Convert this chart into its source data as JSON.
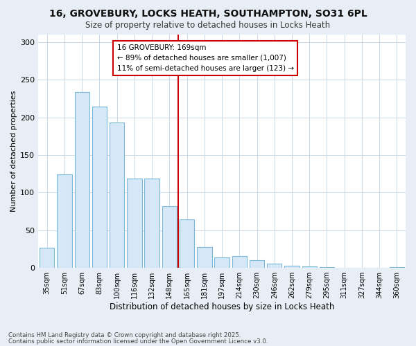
{
  "title_line1": "16, GROVEBURY, LOCKS HEATH, SOUTHAMPTON, SO31 6PL",
  "title_line2": "Size of property relative to detached houses in Locks Heath",
  "xlabel": "Distribution of detached houses by size in Locks Heath",
  "ylabel": "Number of detached properties",
  "categories": [
    "35sqm",
    "51sqm",
    "67sqm",
    "83sqm",
    "100sqm",
    "116sqm",
    "132sqm",
    "148sqm",
    "165sqm",
    "181sqm",
    "197sqm",
    "214sqm",
    "230sqm",
    "246sqm",
    "262sqm",
    "279sqm",
    "295sqm",
    "311sqm",
    "327sqm",
    "344sqm",
    "360sqm"
  ],
  "values": [
    27,
    124,
    234,
    214,
    193,
    119,
    119,
    82,
    65,
    28,
    14,
    16,
    10,
    6,
    3,
    2,
    1,
    0,
    0,
    0,
    1
  ],
  "bar_color": "#d6e8f7",
  "bar_edge_color": "#7ab8d8",
  "vline_index": 8,
  "vline_color": "#cc0000",
  "annotation_line1": "16 GROVEBURY: 169sqm",
  "annotation_line2": "← 89% of detached houses are smaller (1,007)",
  "annotation_line3": "11% of semi-detached houses are larger (123) →",
  "annotation_box_edgecolor": "#cc0000",
  "plot_bg_color": "#ffffff",
  "fig_bg_color": "#e8eef5",
  "ylim": [
    0,
    310
  ],
  "yticks": [
    0,
    50,
    100,
    150,
    200,
    250,
    300
  ],
  "footer_line1": "Contains HM Land Registry data © Crown copyright and database right 2025.",
  "footer_line2": "Contains public sector information licensed under the Open Government Licence v3.0."
}
